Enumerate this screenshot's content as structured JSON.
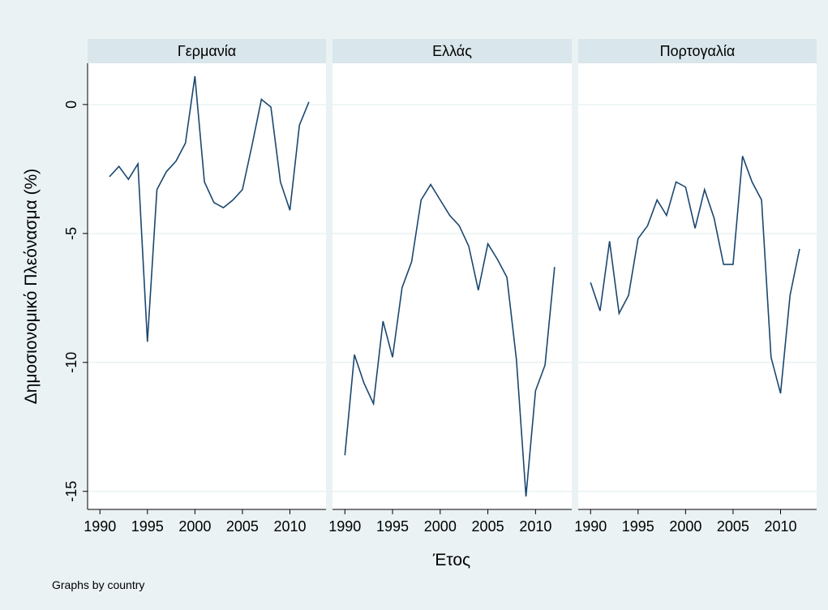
{
  "y_label": "Δημοσιονομικό Πλεόνασμα (%)",
  "x_label": "Έτος",
  "note": "Graphs by country",
  "chart_data": [
    {
      "type": "line",
      "title": "Γερμανία",
      "color": "#1a476f",
      "x": [
        1991,
        1992,
        1993,
        1994,
        1995,
        1996,
        1997,
        1998,
        1999,
        2000,
        2001,
        2002,
        2003,
        2004,
        2005,
        2006,
        2007,
        2008,
        2009,
        2010,
        2011,
        2012
      ],
      "values": [
        -2.8,
        -2.4,
        -2.9,
        -2.3,
        -9.2,
        -3.3,
        -2.6,
        -2.2,
        -1.5,
        1.1,
        -3.0,
        -3.8,
        -4.0,
        -3.7,
        -3.3,
        -1.6,
        0.2,
        -0.1,
        -3.0,
        -4.1,
        -0.8,
        0.1
      ],
      "xlim": [
        1988.7,
        2013.8
      ],
      "ylim": [
        -15.7,
        1.6
      ],
      "xticks": [
        1990,
        1995,
        2000,
        2005,
        2010
      ],
      "yticks": [
        -15,
        -10,
        -5,
        0
      ],
      "grid": true
    },
    {
      "type": "line",
      "title": "Ελλάς",
      "color": "#1a476f",
      "x": [
        1990,
        1991,
        1992,
        1993,
        1994,
        1995,
        1996,
        1997,
        1998,
        1999,
        2000,
        2001,
        2002,
        2003,
        2004,
        2005,
        2006,
        2007,
        2008,
        2009,
        2010,
        2011,
        2012
      ],
      "values": [
        -13.6,
        -9.7,
        -10.8,
        -11.6,
        -8.4,
        -9.8,
        -7.1,
        -6.1,
        -3.7,
        -3.1,
        -3.7,
        -4.3,
        -4.7,
        -5.5,
        -7.2,
        -5.4,
        -6.0,
        -6.7,
        -9.9,
        -15.2,
        -11.1,
        -10.1,
        -6.3
      ],
      "xlim": [
        1988.7,
        2013.8
      ],
      "ylim": [
        -15.7,
        1.6
      ],
      "xticks": [
        1990,
        1995,
        2000,
        2005,
        2010
      ],
      "yticks": [
        -15,
        -10,
        -5,
        0
      ],
      "grid": true
    },
    {
      "type": "line",
      "title": "Πορτογαλία",
      "color": "#1a476f",
      "x": [
        1990,
        1991,
        1992,
        1993,
        1994,
        1995,
        1996,
        1997,
        1998,
        1999,
        2000,
        2001,
        2002,
        2003,
        2004,
        2005,
        2006,
        2007,
        2008,
        2009,
        2010,
        2011,
        2012
      ],
      "values": [
        -6.9,
        -8.0,
        -5.3,
        -8.1,
        -7.4,
        -5.2,
        -4.7,
        -3.7,
        -4.3,
        -3.0,
        -3.2,
        -4.8,
        -3.3,
        -4.4,
        -6.2,
        -6.2,
        -2.0,
        -3.0,
        -3.7,
        -9.8,
        -11.2,
        -7.4,
        -5.6
      ],
      "xlim": [
        1988.7,
        2013.8
      ],
      "ylim": [
        -15.7,
        1.6
      ],
      "xticks": [
        1990,
        1995,
        2000,
        2005,
        2010
      ],
      "yticks": [
        -15,
        -10,
        -5,
        0
      ],
      "grid": true
    }
  ]
}
